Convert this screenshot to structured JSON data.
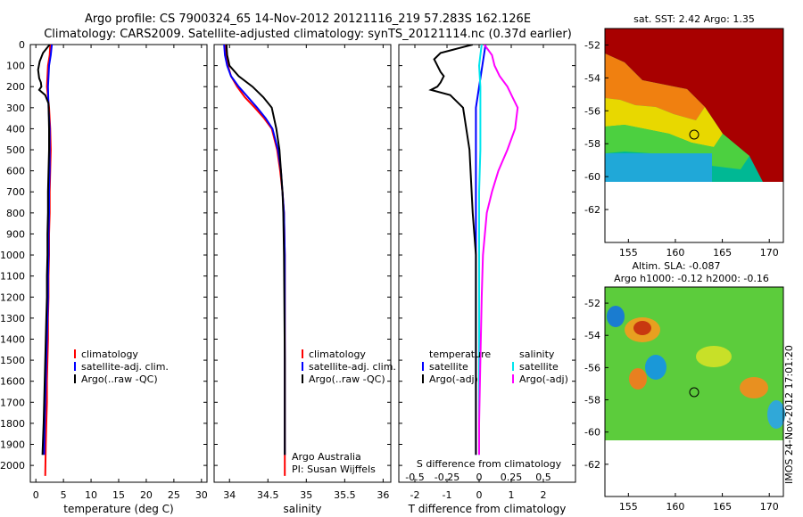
{
  "header": {
    "line1": "Argo profile: CS 7900324_65 14-Nov-2012 20121116_219 57.283S 162.126E",
    "line2": "Climatology: CARS2009. Satellite-adjusted climatology: synTS_20121114.nc (0.37d earlier)"
  },
  "colors": {
    "climatology": "#ff0000",
    "satellite": "#0000ff",
    "argo": "#000000",
    "sal_satellite": "#00e5ee",
    "sal_argo": "#ff00ff"
  },
  "depth_ticks": [
    "0",
    "100",
    "200",
    "300",
    "400",
    "500",
    "600",
    "700",
    "800",
    "900",
    "1000",
    "1100",
    "1200",
    "1300",
    "1400",
    "1500",
    "1600",
    "1700",
    "1800",
    "1900",
    "2000"
  ],
  "panels": {
    "temperature": {
      "xlabel": "temperature (deg C)",
      "xticks": [
        "0",
        "5",
        "10",
        "15",
        "20",
        "25",
        "30"
      ],
      "legend": [
        "climatology",
        "satellite-adj. clim.",
        "Argo(..raw -QC)"
      ]
    },
    "salinity": {
      "xlabel": "salinity",
      "xticks": [
        "34",
        "34.5",
        "35",
        "35.5",
        "36"
      ],
      "legend": [
        "climatology",
        "satellite-adj. clim.",
        "Argo(..raw -QC)"
      ],
      "credit1": "Argo Australia",
      "credit2": "PI: Susan Wijffels"
    },
    "difference": {
      "xlabel_bottom": "T difference from climatology",
      "xlabel_top": "S difference from climatology",
      "xticks_T": [
        "-2",
        "-1",
        "0",
        "1",
        "2"
      ],
      "xticks_S": [
        "-0.5",
        "-0.25",
        "0",
        "0.25",
        "0.5"
      ],
      "legend_temp_title": "temperature",
      "legend_temp": [
        "satellite",
        "Argo(-adj)"
      ],
      "legend_sal_title": "salinity",
      "legend_sal": [
        "satellite",
        "Argo(-adj)"
      ]
    },
    "sst_map": {
      "title": "sat. SST: 2.42 Argo: 1.35",
      "yticks": [
        "-52",
        "-54",
        "-56",
        "-58",
        "-60",
        "-62"
      ],
      "xticks": [
        "155",
        "160",
        "165",
        "170"
      ]
    },
    "sla_map": {
      "title1": "Altim. SLA: -0.087",
      "title2": "Argo h1000: -0.12 h2000: -0.16",
      "yticks": [
        "-52",
        "-54",
        "-56",
        "-58",
        "-60",
        "-62"
      ],
      "xticks": [
        "155",
        "160",
        "165",
        "170"
      ]
    }
  },
  "watermark": "IMOS 24-Nov-2012 17:01:20",
  "chart_data": [
    {
      "type": "line",
      "name": "temperature",
      "xlabel": "temperature (deg C)",
      "ylabel": "",
      "xlim": [
        -1,
        31
      ],
      "ylim": [
        2080,
        0
      ],
      "series": [
        {
          "name": "climatology",
          "x": [
            2.6,
            2.5,
            2.2,
            2.0,
            2.4,
            2.6,
            2.7,
            2.6,
            2.5,
            2.5,
            2.4,
            2.4,
            2.3,
            2.3,
            2.2,
            2.2,
            2.1,
            2.0,
            2.0,
            1.9,
            1.8,
            1.7
          ],
          "y": [
            0,
            50,
            100,
            200,
            300,
            400,
            500,
            600,
            700,
            800,
            900,
            1000,
            1100,
            1200,
            1300,
            1400,
            1500,
            1600,
            1700,
            1800,
            1900,
            2050
          ]
        },
        {
          "name": "satellite-adj. clim.",
          "x": [
            2.9,
            2.7,
            2.4,
            2.2,
            2.3,
            2.5,
            2.5,
            2.5,
            2.4,
            2.4,
            2.3,
            2.3,
            2.2,
            2.2,
            2.1,
            2.0,
            1.9,
            1.8,
            1.7,
            1.6,
            1.5
          ],
          "y": [
            0,
            50,
            100,
            200,
            300,
            400,
            500,
            600,
            700,
            800,
            900,
            1000,
            1100,
            1200,
            1300,
            1400,
            1500,
            1600,
            1700,
            1800,
            1950
          ]
        },
        {
          "name": "Argo(..raw -QC)",
          "x": [
            2.5,
            1.3,
            0.7,
            0.4,
            0.6,
            0.9,
            1.0,
            0.6,
            1.7,
            2.3,
            2.4,
            2.4,
            2.3,
            2.2,
            2.2,
            2.1,
            2.1,
            2.0,
            2.0,
            1.9,
            1.8,
            1.7,
            1.6,
            1.5,
            1.4,
            1.2
          ],
          "y": [
            0,
            40,
            80,
            120,
            160,
            180,
            200,
            215,
            240,
            280,
            400,
            500,
            600,
            700,
            800,
            900,
            1000,
            1100,
            1200,
            1300,
            1400,
            1500,
            1600,
            1700,
            1800,
            1950
          ]
        }
      ]
    },
    {
      "type": "line",
      "name": "salinity",
      "xlabel": "salinity",
      "ylabel": "",
      "xlim": [
        33.8,
        36.1
      ],
      "ylim": [
        2080,
        0
      ],
      "series": [
        {
          "name": "climatology",
          "x": [
            33.95,
            33.96,
            33.98,
            34.02,
            34.1,
            34.2,
            34.33,
            34.45,
            34.55,
            34.62,
            34.66,
            34.69,
            34.71,
            34.72,
            34.72,
            34.72,
            34.72
          ],
          "y": [
            0,
            50,
            100,
            150,
            200,
            250,
            300,
            350,
            400,
            500,
            600,
            700,
            800,
            1000,
            1200,
            1500,
            2050
          ]
        },
        {
          "name": "satellite-adj. clim.",
          "x": [
            33.93,
            33.94,
            33.97,
            34.02,
            34.12,
            34.24,
            34.36,
            34.47,
            34.56,
            34.63,
            34.67,
            34.69,
            34.71,
            34.72,
            34.72,
            34.72
          ],
          "y": [
            0,
            50,
            100,
            150,
            200,
            250,
            300,
            350,
            400,
            500,
            600,
            700,
            800,
            1000,
            1500,
            1950
          ]
        },
        {
          "name": "Argo(..raw -QC)",
          "x": [
            33.96,
            33.97,
            34.0,
            34.12,
            34.3,
            34.44,
            34.55,
            34.61,
            34.65,
            34.67,
            34.69,
            34.7,
            34.71,
            34.72,
            34.72
          ],
          "y": [
            0,
            50,
            100,
            150,
            200,
            250,
            300,
            400,
            500,
            600,
            700,
            800,
            1000,
            1500,
            1950
          ]
        }
      ]
    },
    {
      "type": "line",
      "name": "difference",
      "xlabel": "T difference from climatology",
      "x2label": "S difference from climatology",
      "ylabel": "",
      "xlim": [
        -2.5,
        3.0
      ],
      "x2lim": [
        -0.625,
        0.75
      ],
      "ylim": [
        2080,
        0
      ],
      "series": [
        {
          "name": "temperature satellite",
          "axis": "T",
          "x": [
            0.2,
            0.15,
            0.1,
            0.0,
            -0.1,
            -0.1,
            -0.1,
            -0.1,
            -0.1,
            -0.1,
            -0.1,
            -0.1,
            -0.1,
            -0.1,
            -0.1,
            -0.1,
            -0.1,
            -0.1,
            -0.1,
            -0.1,
            -0.1,
            -0.1
          ],
          "y": [
            0,
            50,
            100,
            200,
            300,
            400,
            500,
            600,
            700,
            800,
            900,
            1000,
            1100,
            1200,
            1300,
            1400,
            1500,
            1600,
            1700,
            1800,
            1900,
            1950
          ]
        },
        {
          "name": "temperature Argo(-adj)",
          "axis": "T",
          "x": [
            -0.2,
            -0.7,
            -1.2,
            -1.4,
            -1.3,
            -1.2,
            -1.1,
            -1.2,
            -1.3,
            -1.5,
            -0.9,
            -0.5,
            -0.3,
            -0.2,
            -0.1,
            -0.1,
            -0.1,
            -0.1,
            -0.1,
            -0.1
          ],
          "y": [
            0,
            20,
            40,
            70,
            100,
            130,
            150,
            180,
            200,
            215,
            240,
            300,
            500,
            800,
            1000,
            1200,
            1500,
            1700,
            1800,
            1950
          ]
        },
        {
          "name": "salinity satellite",
          "axis": "S",
          "x": [
            0.02,
            0.01,
            0.0,
            0.01,
            0.01,
            0.01,
            0.01,
            0.0,
            0.0,
            0.0,
            0.0,
            0.0,
            0.0
          ],
          "y": [
            0,
            50,
            100,
            200,
            300,
            400,
            500,
            700,
            1000,
            1200,
            1500,
            1800,
            1950
          ]
        },
        {
          "name": "salinity Argo(-adj)",
          "axis": "S",
          "x": [
            0.04,
            0.1,
            0.12,
            0.16,
            0.22,
            0.26,
            0.3,
            0.28,
            0.22,
            0.15,
            0.1,
            0.06,
            0.03,
            0.02,
            0.01,
            0.0,
            0.0
          ],
          "y": [
            0,
            50,
            100,
            150,
            200,
            250,
            300,
            400,
            500,
            600,
            700,
            800,
            1000,
            1200,
            1500,
            1800,
            1950
          ]
        }
      ]
    },
    {
      "type": "heatmap",
      "name": "sst_map",
      "title": "sat. SST: 2.42 Argo: 1.35",
      "xlim": [
        152.5,
        171.5
      ],
      "ylim": [
        -64,
        -51
      ],
      "float_position": {
        "lon": 162.126,
        "lat": -57.283
      }
    },
    {
      "type": "heatmap",
      "name": "sla_map",
      "title": "Altim. SLA: -0.087 / Argo h1000: -0.12 h2000: -0.16",
      "xlim": [
        152.5,
        171.5
      ],
      "ylim": [
        -64,
        -51
      ],
      "float_position": {
        "lon": 162.126,
        "lat": -57.283
      }
    }
  ]
}
